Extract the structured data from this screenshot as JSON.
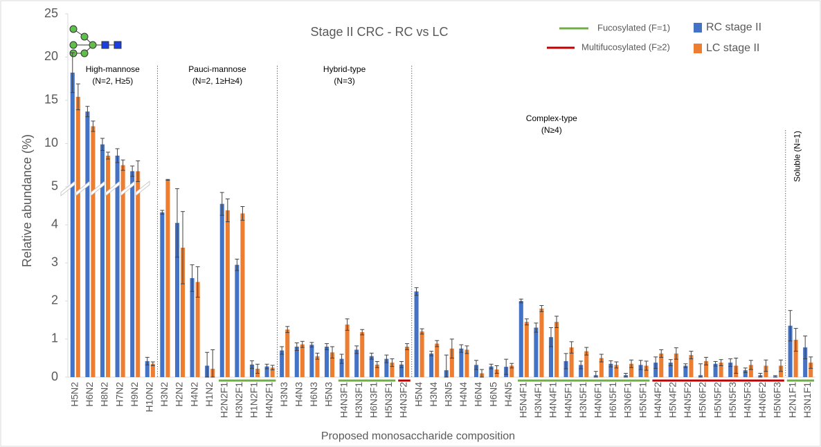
{
  "chart_data": {
    "type": "bar",
    "title": "Stage II CRC - RC vs LC",
    "x_label": "Proposed monosaccharide composition",
    "y_label": "Relative abundance (%)",
    "categories": [
      "H5N2",
      "H6N2",
      "H8N2",
      "H7N2",
      "H9N2",
      "H10N2",
      "H3N2",
      "H2N2",
      "H4N2",
      "H1N2",
      "H2N2F1",
      "H3N2F1",
      "H1N2F1",
      "H4N2F1",
      "H3N3",
      "H4N3",
      "H6N3",
      "H5N3",
      "H4N3F1",
      "H3N3F1",
      "H6N3F1",
      "H5N3F1",
      "H4N3F2",
      "H5N4",
      "H3N4",
      "H3N5",
      "H4N4",
      "H6N4",
      "H6N5",
      "H4N5",
      "H5N4F1",
      "H3N4F1",
      "H4N4F1",
      "H4N5F1",
      "H3N5F1",
      "H4N6F1",
      "H6N5F1",
      "H3N6F1",
      "H5N5F1",
      "H4N4F2",
      "H5N4F2",
      "H4N5F2",
      "H5N6F2",
      "H5N5F2",
      "H5N5F3",
      "H4N5F3",
      "H4N6F2",
      "H5N6F3",
      "H2N1F1",
      "H3N1F1"
    ],
    "series": [
      {
        "name": "RC stage II",
        "color": "#4472c4",
        "values": [
          18.2,
          13.7,
          9.9,
          8.6,
          6.8,
          0.42,
          4.33,
          4.05,
          2.6,
          0.3,
          4.55,
          2.95,
          0.33,
          0.28,
          0.7,
          0.8,
          0.85,
          0.8,
          0.48,
          0.72,
          0.55,
          0.48,
          0.33,
          2.25,
          0.62,
          0.18,
          0.75,
          0.32,
          0.28,
          0.27,
          2.0,
          1.3,
          1.05,
          0.42,
          0.32,
          0.05,
          0.35,
          0.05,
          0.32,
          0.38,
          0.38,
          0.3,
          0.05,
          0.35,
          0.38,
          0.18,
          0.05,
          0.02,
          1.35,
          0.78
        ],
        "errors": [
          2.3,
          0.6,
          0.7,
          0.8,
          0.6,
          0.1,
          0.05,
          0.9,
          0.35,
          0.35,
          0.3,
          0.15,
          0.1,
          0.06,
          0.1,
          0.1,
          0.06,
          0.08,
          0.12,
          0.1,
          0.08,
          0.1,
          0.08,
          0.1,
          0.06,
          0.4,
          0.1,
          0.12,
          0.06,
          0.2,
          0.05,
          0.12,
          0.25,
          0.2,
          0.1,
          0.1,
          0.08,
          0.05,
          0.12,
          0.15,
          0.08,
          0.05,
          0.3,
          0.06,
          0.1,
          0.06,
          0.05,
          0.02,
          0.4,
          0.3
        ]
      },
      {
        "name": "LC stage II",
        "color": "#ed7d31",
        "values": [
          15.4,
          12.0,
          8.6,
          7.5,
          6.8,
          0.35,
          5.8,
          3.4,
          2.5,
          0.22,
          4.38,
          4.3,
          0.22,
          0.25,
          1.25,
          0.86,
          0.55,
          0.65,
          1.38,
          1.18,
          0.33,
          0.38,
          0.8,
          1.2,
          0.88,
          0.75,
          0.72,
          0.1,
          0.2,
          0.3,
          1.45,
          1.8,
          1.45,
          0.78,
          0.68,
          0.5,
          0.32,
          0.35,
          0.3,
          0.62,
          0.62,
          0.58,
          0.42,
          0.38,
          0.3,
          0.32,
          0.3,
          0.3,
          0.98,
          0.38
        ],
        "errors": [
          1.5,
          0.6,
          0.4,
          0.6,
          1.2,
          0.05,
          0.05,
          0.95,
          0.4,
          0.5,
          0.3,
          0.18,
          0.12,
          0.06,
          0.08,
          0.08,
          0.08,
          0.15,
          0.15,
          0.07,
          0.08,
          0.1,
          0.08,
          0.07,
          0.08,
          0.25,
          0.1,
          0.1,
          0.1,
          0.06,
          0.08,
          0.08,
          0.15,
          0.15,
          0.1,
          0.1,
          0.08,
          0.1,
          0.12,
          0.1,
          0.15,
          0.1,
          0.1,
          0.08,
          0.2,
          0.12,
          0.15,
          0.15,
          0.3,
          0.15
        ]
      }
    ],
    "ylim": [
      0,
      25
    ],
    "y_break": 5,
    "yticks": [
      0,
      1,
      2,
      3,
      4,
      5,
      10,
      15,
      20,
      25
    ],
    "grid": false,
    "groups": [
      {
        "label": [
          "High-mannose",
          "(N=2, H≥5)"
        ],
        "start": "H5N2",
        "end": "H10N2"
      },
      {
        "label": [
          "Pauci-mannose",
          "(N=2, 1≥H≥4)"
        ],
        "start": "H3N2",
        "end": "H4N2F1"
      },
      {
        "label": [
          "Hybrid-type",
          "(N=3)"
        ],
        "start": "H3N3",
        "end": "H4N3F2"
      },
      {
        "label": [
          "Complex-type",
          "(N≥4)"
        ],
        "start": "H5N4",
        "end": "H5N6F3"
      },
      {
        "label": [
          "Soluble (N=1)"
        ],
        "start": "H2N1F1",
        "end": "H3N1F1"
      }
    ],
    "fucose_lines": [
      {
        "name": "Fucosylated (F=1)",
        "color": "#70ad47",
        "ranges": [
          [
            "H2N2F1",
            "H4N2F1"
          ],
          [
            "H4N3F1",
            "H5N3F1"
          ],
          [
            "H5N4F1",
            "H5N5F1"
          ],
          [
            "H2N1F1",
            "H3N1F1"
          ]
        ]
      },
      {
        "name": "Multifucosylated (F≥2)",
        "color": "#c00000",
        "ranges": [
          [
            "H4N3F2",
            "H4N3F2"
          ],
          [
            "H4N4F2",
            "H5N6F3"
          ]
        ]
      }
    ]
  }
}
